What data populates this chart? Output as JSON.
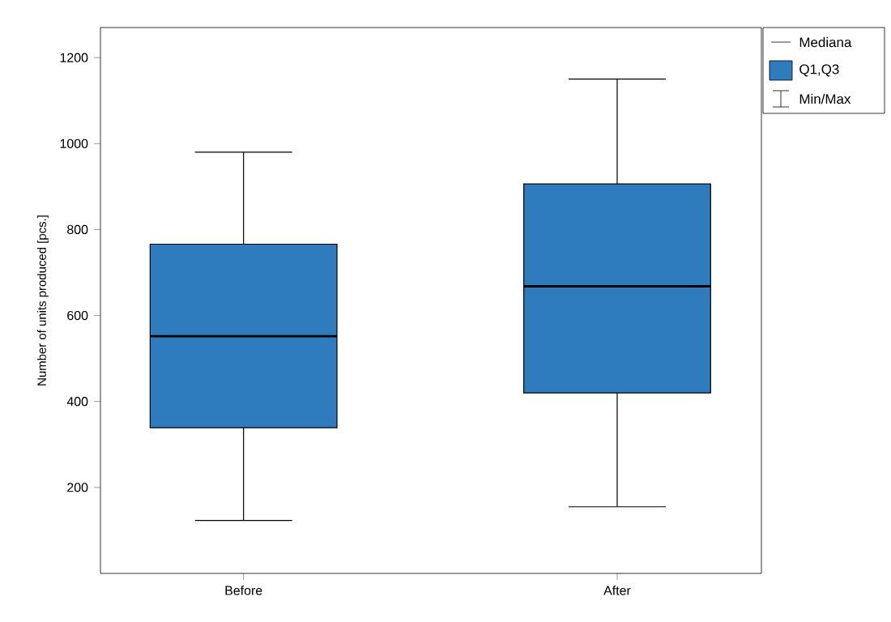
{
  "chart_data": {
    "type": "box",
    "ylabel": "Number of units produced [pcs.]",
    "categories": [
      "Before",
      "After"
    ],
    "series": [
      {
        "name": "Q1,Q3",
        "color": "#2e7bbd",
        "boxes": [
          {
            "low": 123,
            "q1": 339,
            "median": 552,
            "q3": 766,
            "high": 980
          },
          {
            "low": 155,
            "q1": 420,
            "median": 668,
            "q3": 906,
            "high": 1150
          }
        ]
      }
    ],
    "annotations": [
      "Mediana",
      "Min/Max"
    ],
    "ylim": [
      0,
      1270
    ],
    "yticks": [
      200,
      400,
      600,
      800,
      1000,
      1200
    ],
    "legend": "top right"
  }
}
